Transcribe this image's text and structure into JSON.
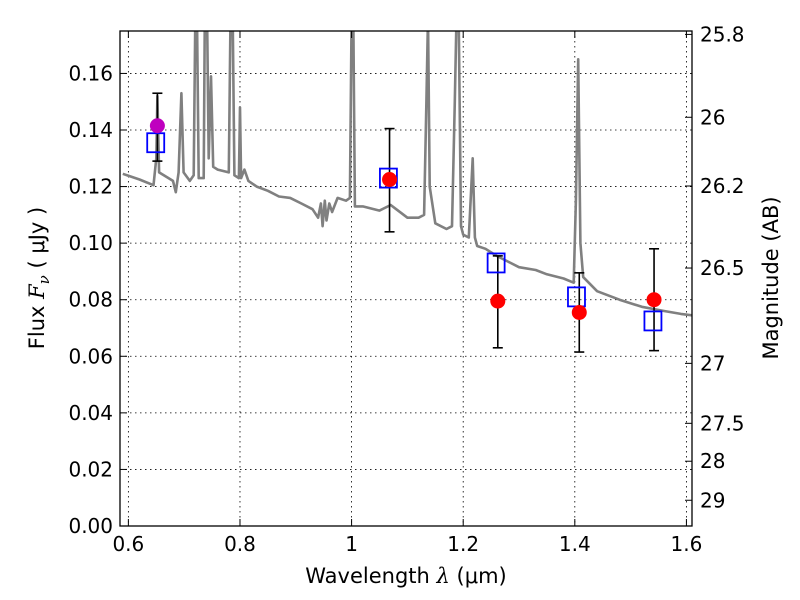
{
  "chart_data": {
    "type": "scatter",
    "title": "",
    "xlabel": "Wavelength",
    "xlabel_symbol": "λ",
    "xlabel_unit": "(μm)",
    "ylabel": "Flux",
    "ylabel_symbol": "F",
    "ylabel_subscript": "ν",
    "ylabel_unit": "( μJy )",
    "y2label": "Magnitude (AB)",
    "xlim": [
      0.585,
      1.61
    ],
    "ylim": [
      0.0,
      0.175
    ],
    "grid": true,
    "x_ticks": [
      0.6,
      0.8,
      1.0,
      1.2,
      1.4,
      1.6
    ],
    "x_tick_labels": [
      "0.6",
      "0.8",
      "1",
      "1.2",
      "1.4",
      "1.6"
    ],
    "y_ticks": [
      0.0,
      0.02,
      0.04,
      0.06,
      0.08,
      0.1,
      0.12,
      0.14,
      0.16
    ],
    "y_tick_labels": [
      "0.00",
      "0.02",
      "0.04",
      "0.06",
      "0.08",
      "0.10",
      "0.12",
      "0.14",
      "0.16"
    ],
    "y2_ticks": [
      {
        "label": "25.8",
        "flux": 0.1738
      },
      {
        "label": "26",
        "flux": 0.1445
      },
      {
        "label": "26.2",
        "flux": 0.1202
      },
      {
        "label": "26.5",
        "flux": 0.0912
      },
      {
        "label": "27",
        "flux": 0.0575
      },
      {
        "label": "27.5",
        "flux": 0.0363
      },
      {
        "label": "28",
        "flux": 0.0229
      },
      {
        "label": "29",
        "flux": 0.0091
      }
    ],
    "colors": {
      "spectrum": "#808080",
      "observed": "#ff0000",
      "observed_first": "#bf00bf",
      "model": "#0000ff",
      "errorbar": "#000000",
      "grid": "#000000"
    },
    "series": [
      {
        "name": "Model spectrum",
        "type": "line",
        "points": [
          [
            0.59,
            0.1245
          ],
          [
            0.62,
            0.1225
          ],
          [
            0.645,
            0.1205
          ],
          [
            0.65,
            0.13
          ],
          [
            0.652,
            0.152
          ],
          [
            0.655,
            0.125
          ],
          [
            0.68,
            0.122
          ],
          [
            0.685,
            0.118
          ],
          [
            0.69,
            0.125
          ],
          [
            0.695,
            0.153
          ],
          [
            0.699,
            0.125
          ],
          [
            0.71,
            0.122
          ],
          [
            0.717,
            0.124
          ],
          [
            0.72,
            0.18
          ],
          [
            0.723,
            0.18
          ],
          [
            0.726,
            0.123
          ],
          [
            0.735,
            0.123
          ],
          [
            0.737,
            0.18
          ],
          [
            0.741,
            0.18
          ],
          [
            0.744,
            0.13
          ],
          [
            0.748,
            0.159
          ],
          [
            0.752,
            0.127
          ],
          [
            0.76,
            0.126
          ],
          [
            0.78,
            0.125
          ],
          [
            0.783,
            0.18
          ],
          [
            0.787,
            0.18
          ],
          [
            0.79,
            0.124
          ],
          [
            0.798,
            0.123
          ],
          [
            0.8,
            0.148
          ],
          [
            0.802,
            0.123
          ],
          [
            0.808,
            0.126
          ],
          [
            0.815,
            0.122
          ],
          [
            0.83,
            0.12
          ],
          [
            0.85,
            0.1185
          ],
          [
            0.87,
            0.1165
          ],
          [
            0.89,
            0.116
          ],
          [
            0.91,
            0.114
          ],
          [
            0.93,
            0.112
          ],
          [
            0.94,
            0.109
          ],
          [
            0.945,
            0.114
          ],
          [
            0.948,
            0.106
          ],
          [
            0.952,
            0.115
          ],
          [
            0.955,
            0.108
          ],
          [
            0.96,
            0.114
          ],
          [
            0.965,
            0.111
          ],
          [
            0.975,
            0.116
          ],
          [
            0.99,
            0.115
          ],
          [
            0.997,
            0.116
          ],
          [
            1.0,
            0.18
          ],
          [
            1.003,
            0.18
          ],
          [
            1.006,
            0.113
          ],
          [
            1.02,
            0.113
          ],
          [
            1.05,
            0.1115
          ],
          [
            1.07,
            0.1135
          ],
          [
            1.08,
            0.112
          ],
          [
            1.1,
            0.109
          ],
          [
            1.12,
            0.109
          ],
          [
            1.13,
            0.11
          ],
          [
            1.134,
            0.15
          ],
          [
            1.137,
            0.18
          ],
          [
            1.14,
            0.12
          ],
          [
            1.15,
            0.107
          ],
          [
            1.17,
            0.105
          ],
          [
            1.18,
            0.106
          ],
          [
            1.185,
            0.15
          ],
          [
            1.188,
            0.18
          ],
          [
            1.192,
            0.18
          ],
          [
            1.196,
            0.106
          ],
          [
            1.2,
            0.103
          ],
          [
            1.21,
            0.102
          ],
          [
            1.217,
            0.13
          ],
          [
            1.221,
            0.102
          ],
          [
            1.225,
            0.099
          ],
          [
            1.24,
            0.098
          ],
          [
            1.26,
            0.0955
          ],
          [
            1.28,
            0.0935
          ],
          [
            1.3,
            0.0915
          ],
          [
            1.33,
            0.0905
          ],
          [
            1.35,
            0.089
          ],
          [
            1.38,
            0.0875
          ],
          [
            1.398,
            0.086
          ],
          [
            1.402,
            0.115
          ],
          [
            1.406,
            0.165
          ],
          [
            1.41,
            0.1
          ],
          [
            1.415,
            0.088
          ],
          [
            1.44,
            0.083
          ],
          [
            1.48,
            0.08
          ],
          [
            1.52,
            0.0775
          ],
          [
            1.56,
            0.076
          ],
          [
            1.59,
            0.075
          ],
          [
            1.61,
            0.0745
          ]
        ]
      },
      {
        "name": "Observed flux",
        "type": "scatter-errorbar",
        "points": [
          {
            "x": 0.652,
            "y": 0.1415,
            "yerr_low": 0.129,
            "yerr_high": 0.153
          },
          {
            "x": 1.068,
            "y": 0.1225,
            "yerr_low": 0.104,
            "yerr_high": 0.1405
          },
          {
            "x": 1.262,
            "y": 0.0795,
            "yerr_low": 0.063,
            "yerr_high": 0.0955
          },
          {
            "x": 1.408,
            "y": 0.0755,
            "yerr_low": 0.0615,
            "yerr_high": 0.0895
          },
          {
            "x": 1.542,
            "y": 0.08,
            "yerr_low": 0.062,
            "yerr_high": 0.098
          }
        ]
      },
      {
        "name": "Model photometry",
        "type": "scatter-square",
        "points": [
          {
            "x": 0.649,
            "y": 0.1355
          },
          {
            "x": 1.066,
            "y": 0.123
          },
          {
            "x": 1.259,
            "y": 0.093
          },
          {
            "x": 1.403,
            "y": 0.081
          },
          {
            "x": 1.54,
            "y": 0.0725
          }
        ]
      }
    ]
  }
}
